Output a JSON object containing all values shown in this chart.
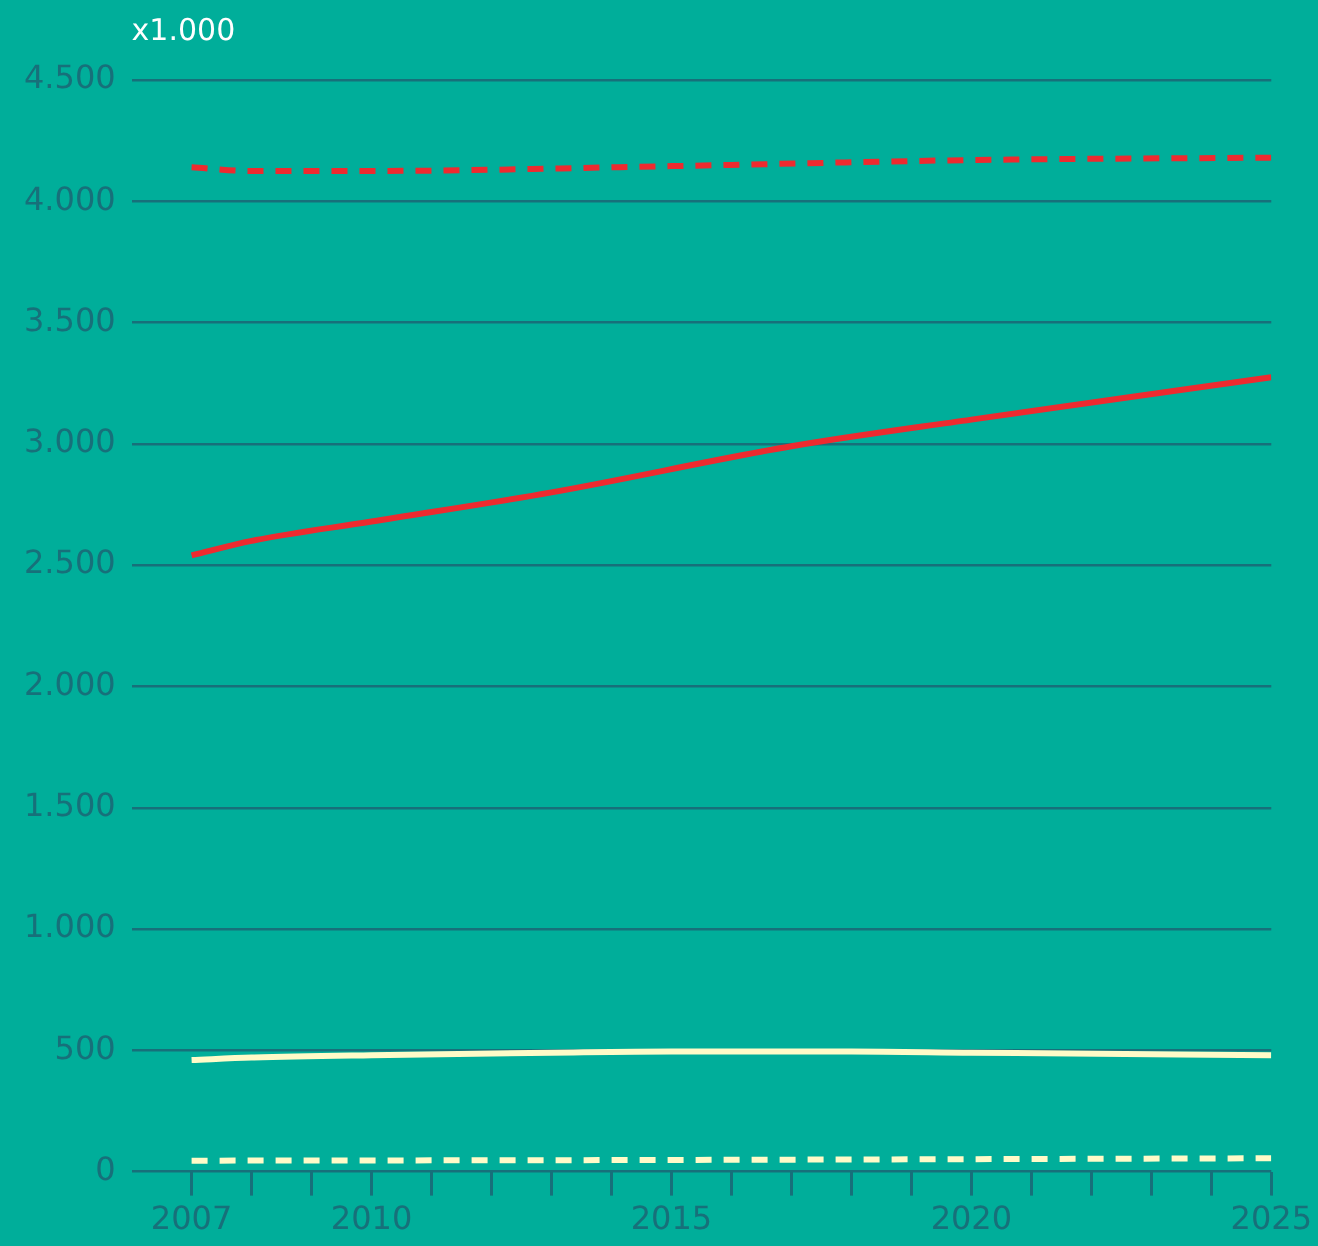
{
  "chart_data": {
    "type": "line",
    "ylabel": "x1.000",
    "xlim": [
      2006,
      2025
    ],
    "xticks": [
      2007,
      {
        "value": 2008,
        "label": null
      },
      {
        "value": 2009,
        "label": null
      },
      2010,
      {
        "value": 2011,
        "label": null
      },
      {
        "value": 2012,
        "label": null
      },
      {
        "value": 2013,
        "label": null
      },
      {
        "value": 2014,
        "label": null
      },
      2015,
      {
        "value": 2016,
        "label": null
      },
      {
        "value": 2017,
        "label": null
      },
      {
        "value": 2018,
        "label": null
      },
      {
        "value": 2019,
        "label": null
      },
      2020,
      {
        "value": 2021,
        "label": null
      },
      {
        "value": 2022,
        "label": null
      },
      {
        "value": 2023,
        "label": null
      },
      {
        "value": 2024,
        "label": null
      },
      2025
    ],
    "ylim": [
      0,
      4500
    ],
    "yticks": [
      {
        "value": 0,
        "label": "0"
      },
      {
        "value": 500,
        "label": "500"
      },
      {
        "value": 1000,
        "label": "1.000"
      },
      {
        "value": 1500,
        "label": "1.500"
      },
      {
        "value": 2000,
        "label": "2.000"
      },
      {
        "value": 2500,
        "label": "2.500"
      },
      {
        "value": 3000,
        "label": "3.000"
      },
      {
        "value": 3500,
        "label": "3.500"
      },
      {
        "value": 4000,
        "label": "4.000"
      },
      {
        "value": 4500,
        "label": "4.500"
      }
    ],
    "grid": "y",
    "legend": false,
    "marker": "none",
    "series": [
      {
        "color": "#ee2a2f",
        "line_style": "dashed",
        "x": [
          2007,
          2008,
          2010,
          2015,
          2020,
          2025
        ],
        "values": [
          4140,
          4125,
          4125,
          4145,
          4170,
          4180
        ]
      },
      {
        "color": "#ee2a2f",
        "line_style": "solid",
        "x": [
          2007,
          2008,
          2010,
          2013,
          2017,
          2020,
          2025
        ],
        "values": [
          2540,
          2600,
          2680,
          2800,
          2990,
          3100,
          3275
        ]
      },
      {
        "color": "#fffbc8",
        "line_style": "solid",
        "x": [
          2007,
          2008,
          2010,
          2013,
          2015,
          2018,
          2020,
          2025
        ],
        "values": [
          460,
          470,
          480,
          490,
          495,
          495,
          490,
          480
        ]
      },
      {
        "color": "#fffbc8",
        "line_style": "dashed",
        "x": [
          2007,
          2015,
          2025
        ],
        "values": [
          45,
          48,
          55
        ]
      }
    ]
  }
}
